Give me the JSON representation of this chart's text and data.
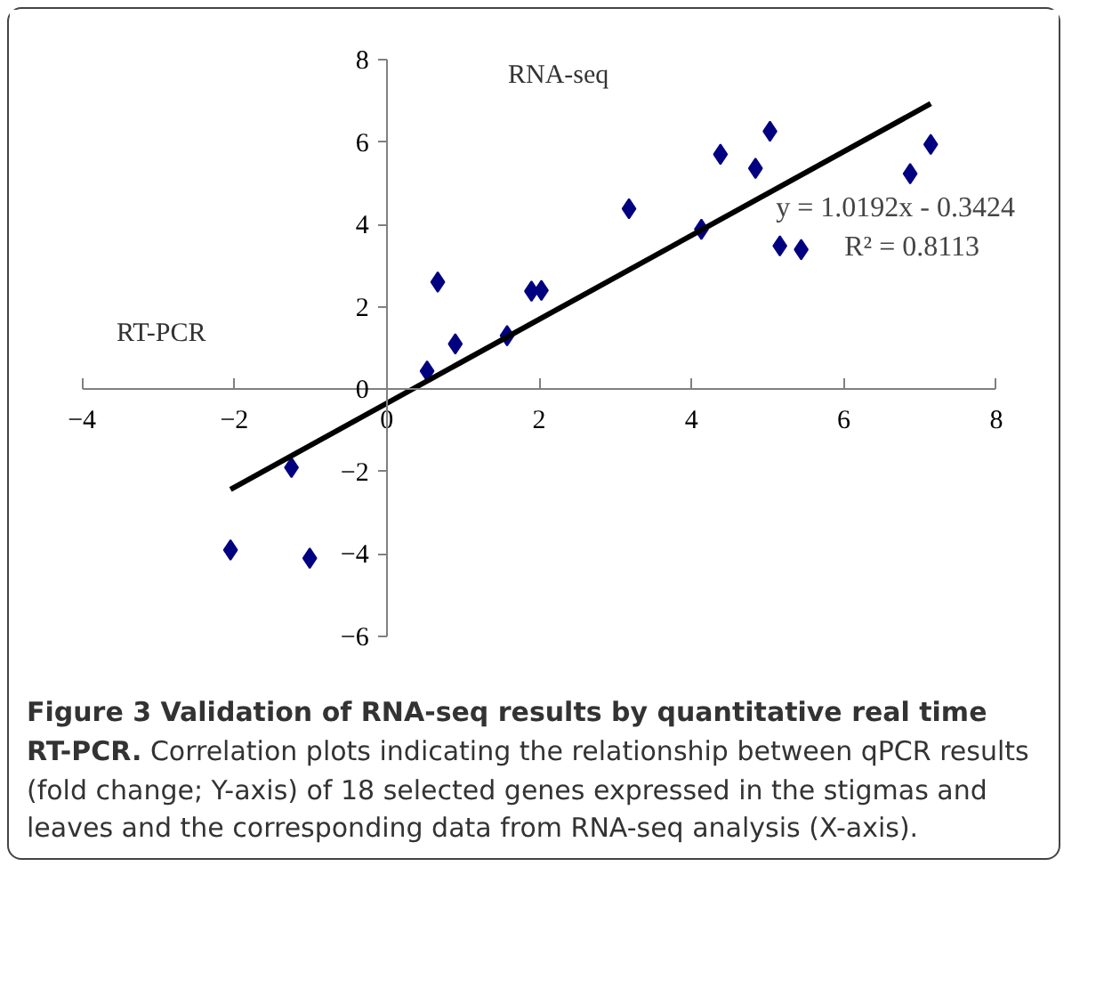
{
  "chart_data": {
    "type": "scatter",
    "title": "Figure 3 Validation of RNA-seq results by quantitative real time RT-PCR.",
    "subtitle": "Correlation plots indicating the relationship between qPCR results (fold change; Y-axis) of 18 selected genes expressed in the stigmas and leaves and the corresponding data from RNA-seq analysis (X-axis).",
    "xlabel": "RT-PCR",
    "ylabel": "RNA-seq",
    "annotations": [
      "y = 1.0192x - 0.3424",
      "R² = 0.8113"
    ],
    "series": [
      {
        "color": "#000080",
        "marker": "diamond",
        "x": [
          -2.05,
          -1.25,
          -1.01,
          0.53,
          0.67,
          0.9,
          1.58,
          1.9,
          2.03,
          3.18,
          4.13,
          4.38,
          4.84,
          5.03,
          5.16,
          5.44,
          6.87,
          7.14
        ],
        "values": [
          -3.9,
          -1.9,
          -4.1,
          0.44,
          2.6,
          1.1,
          1.3,
          2.38,
          2.4,
          4.38,
          3.88,
          5.7,
          5.36,
          6.26,
          3.48,
          3.39,
          5.23,
          5.94
        ]
      },
      {
        "type": "line",
        "color": "#000000",
        "marker": "none",
        "x": [
          -2.05,
          7.14
        ],
        "values": [
          -2.43,
          6.93
        ]
      }
    ],
    "xlim": [
      -4,
      8
    ],
    "ylim": [
      -6,
      8
    ],
    "xticks": [
      -4,
      -2,
      0,
      2,
      4,
      6,
      8
    ],
    "yticks": [
      -6,
      -4,
      -2,
      0,
      2,
      4,
      6,
      8
    ],
    "grid": false
  }
}
